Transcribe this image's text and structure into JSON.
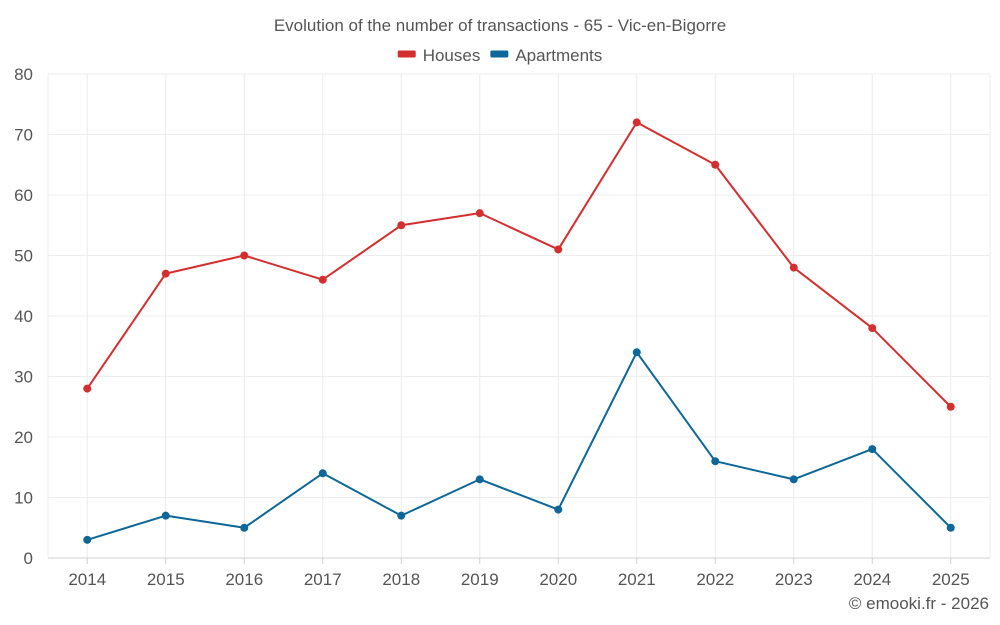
{
  "chart_data": {
    "type": "line",
    "title": "Evolution of the number of transactions - 65 - Vic-en-Bigorre",
    "xlabel": "",
    "ylabel": "",
    "categories": [
      "2014",
      "2015",
      "2016",
      "2017",
      "2018",
      "2019",
      "2020",
      "2021",
      "2022",
      "2023",
      "2024",
      "2025"
    ],
    "series": [
      {
        "name": "Houses",
        "color": "#d32f2f",
        "values": [
          28,
          47,
          50,
          46,
          55,
          57,
          51,
          72,
          65,
          48,
          38,
          25
        ]
      },
      {
        "name": "Apartments",
        "color": "#0d6799",
        "values": [
          3,
          7,
          5,
          14,
          7,
          13,
          8,
          34,
          16,
          13,
          18,
          5
        ]
      }
    ],
    "ylim": [
      0,
      80
    ],
    "yticks": [
      0,
      10,
      20,
      30,
      40,
      50,
      60,
      70,
      80
    ],
    "grid": true,
    "legend_position": "top-center"
  },
  "credit": "© emooki.fr - 2026"
}
